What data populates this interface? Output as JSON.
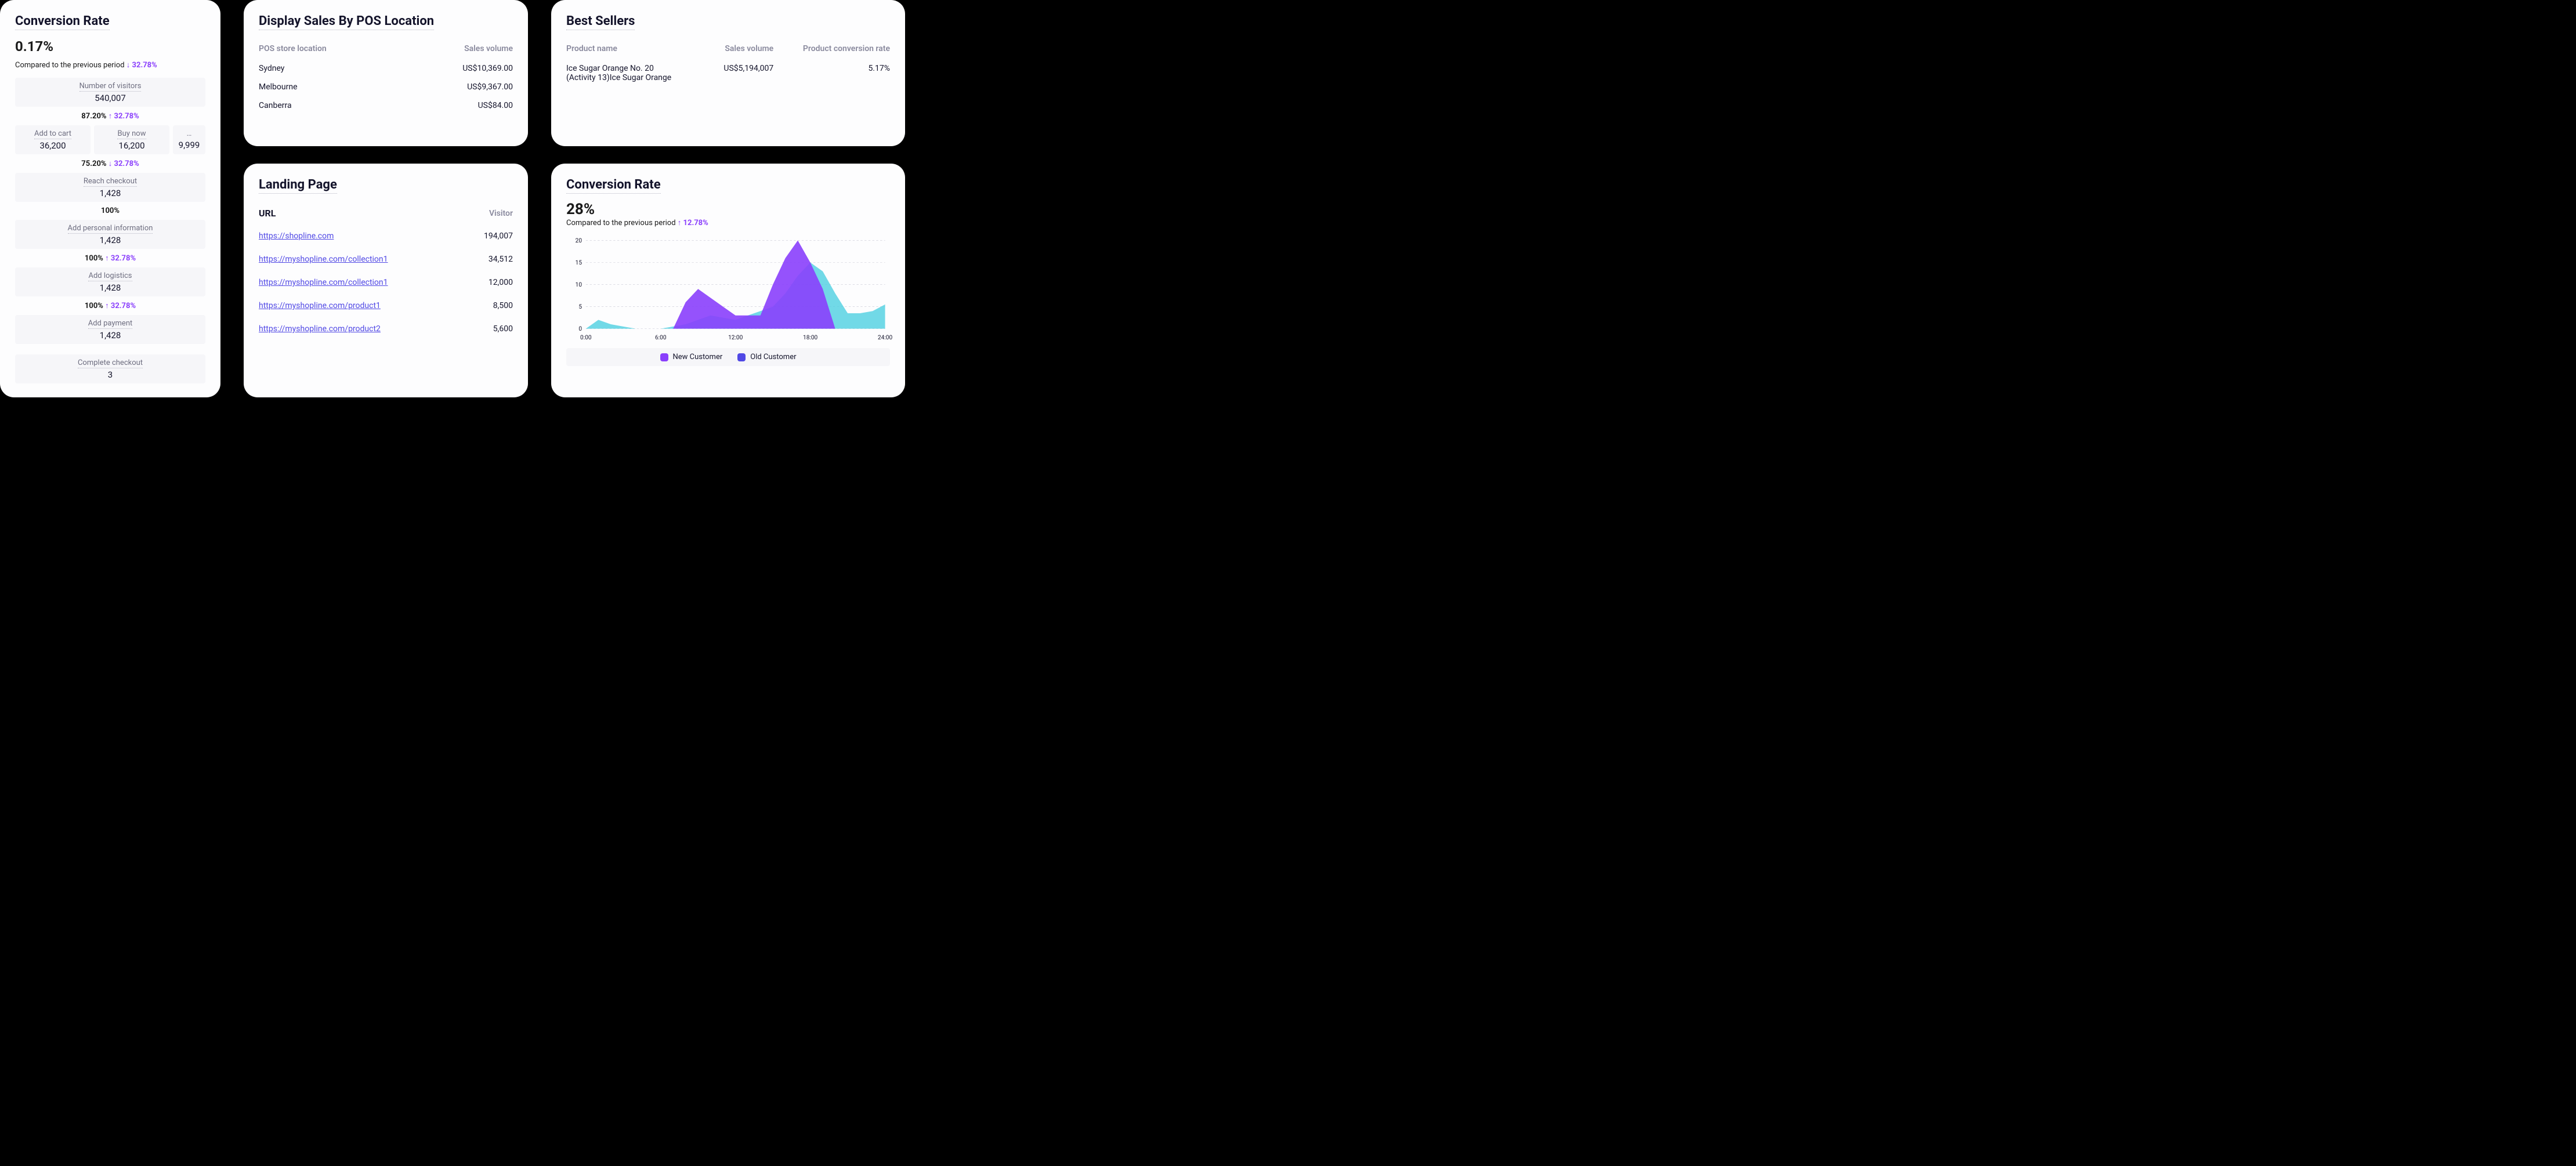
{
  "conversion_left": {
    "title": "Conversion Rate",
    "value": "0.17%",
    "compare_label": "Compared to the previous period",
    "compare_delta": "32.78%",
    "compare_dir": "down",
    "funnel": [
      {
        "type": "single",
        "label": "Number of visitors",
        "value": "540,007"
      },
      {
        "type": "pct",
        "pct": "87.20%",
        "delta": "32.78%",
        "dir": "up"
      },
      {
        "type": "multi",
        "items": [
          {
            "label": "Add to cart",
            "value": "36,200"
          },
          {
            "label": "Buy now",
            "value": "16,200"
          },
          {
            "label": "…",
            "value": "9,999",
            "ellipsis": true
          }
        ]
      },
      {
        "type": "pct",
        "pct": "75.20%",
        "delta": "32.78%",
        "dir": "down"
      },
      {
        "type": "single",
        "label": "Reach checkout",
        "value": "1,428"
      },
      {
        "type": "pct",
        "pct": "100%"
      },
      {
        "type": "single",
        "label": "Add personal information",
        "value": "1,428"
      },
      {
        "type": "pct",
        "pct": "100%",
        "delta": "32.78%",
        "dir": "up"
      },
      {
        "type": "single",
        "label": "Add logistics",
        "value": "1,428"
      },
      {
        "type": "pct",
        "pct": "100%",
        "delta": "32.78%",
        "dir": "up"
      },
      {
        "type": "single",
        "label": "Add payment",
        "value": "1,428"
      },
      {
        "type": "spacer"
      },
      {
        "type": "single",
        "label": "Complete checkout",
        "value": "3"
      }
    ]
  },
  "pos_sales": {
    "title": "Display Sales By POS Location",
    "col1": "POS store location",
    "col2": "Sales volume",
    "rows": [
      {
        "loc": "Sydney",
        "val": "US$10,369.00"
      },
      {
        "loc": "Melbourne",
        "val": "US$9,367.00"
      },
      {
        "loc": "Canberra",
        "val": "US$84.00"
      }
    ]
  },
  "best_sellers": {
    "title": "Best Sellers",
    "col1": "Product name",
    "col2": "Sales volume",
    "col3": "Product conversion rate",
    "rows": [
      {
        "name_l1": "Ice Sugar Orange No. 20",
        "name_l2": "(Activity 13)Ice Sugar Orange",
        "vol": "US$5,194,007",
        "rate": "5.17%"
      }
    ]
  },
  "landing": {
    "title": "Landing Page",
    "col1": "URL",
    "col2": "Visitor",
    "rows": [
      {
        "url": "https://shopline.com",
        "vis": "194,007"
      },
      {
        "url": "https://myshopline.com/collection1",
        "vis": "34,512"
      },
      {
        "url": "https://myshopline.com/collection1",
        "vis": "12,000"
      },
      {
        "url": "https://myshopline.com/product1",
        "vis": "8,500"
      },
      {
        "url": "https://myshopline.com/product2",
        "vis": "5,600"
      }
    ]
  },
  "conversion_right": {
    "title": "Conversion Rate",
    "value": "28%",
    "compare_label": "Compared to the previous period",
    "compare_delta": "12.78%",
    "compare_dir": "up",
    "chart": {
      "type": "area",
      "ylim": [
        0,
        20
      ],
      "yticks": [
        0,
        5,
        10,
        15,
        20
      ],
      "xticks": [
        "0:00",
        "6:00",
        "12:00",
        "18:00",
        "24:00"
      ],
      "grid_color": "#d7d7e0",
      "background_color": "#fdfdfe",
      "label_fontsize": 12,
      "series": [
        {
          "name": "New Customer",
          "color": "#8a3ffc",
          "opacity": 0.9,
          "x": [
            0,
            1,
            2,
            3,
            4,
            5,
            6,
            7,
            8,
            9,
            10,
            11,
            12,
            13,
            14,
            15,
            16,
            17,
            18,
            19,
            20,
            21,
            22,
            23,
            24
          ],
          "y": [
            0,
            0,
            0,
            0,
            0,
            0,
            0,
            0,
            6,
            9,
            7,
            5,
            3,
            3,
            3,
            10,
            16,
            20,
            15,
            9,
            0,
            0,
            0,
            0,
            0
          ]
        },
        {
          "name": "Old Customer",
          "color": "#3a6fff",
          "cyan_color": "#4dd0e1",
          "opacity": 0.8,
          "x": [
            0,
            1,
            2,
            3,
            4,
            5,
            6,
            7,
            8,
            9,
            10,
            11,
            12,
            13,
            14,
            15,
            16,
            17,
            18,
            19,
            20,
            21,
            22,
            23,
            24
          ],
          "y": [
            0,
            2,
            1,
            0.5,
            0,
            0,
            0,
            0.5,
            1,
            2,
            3,
            2.5,
            2,
            3,
            4,
            5,
            8,
            12,
            15,
            13,
            8,
            3.5,
            3.5,
            4,
            5.5
          ]
        }
      ],
      "legend": [
        {
          "label": "New Customer",
          "color": "#8a3ffc"
        },
        {
          "label": "Old Customer",
          "color": "#5048e5"
        }
      ]
    }
  },
  "style": {
    "card_bg": "#fdfdfe",
    "page_bg": "#000000",
    "text_primary": "#14142b",
    "text_muted": "#8a8a9e",
    "accent_purple": "#8a3ffc",
    "link_color": "#5048e5",
    "funnel_bg": "#f6f6f9"
  }
}
